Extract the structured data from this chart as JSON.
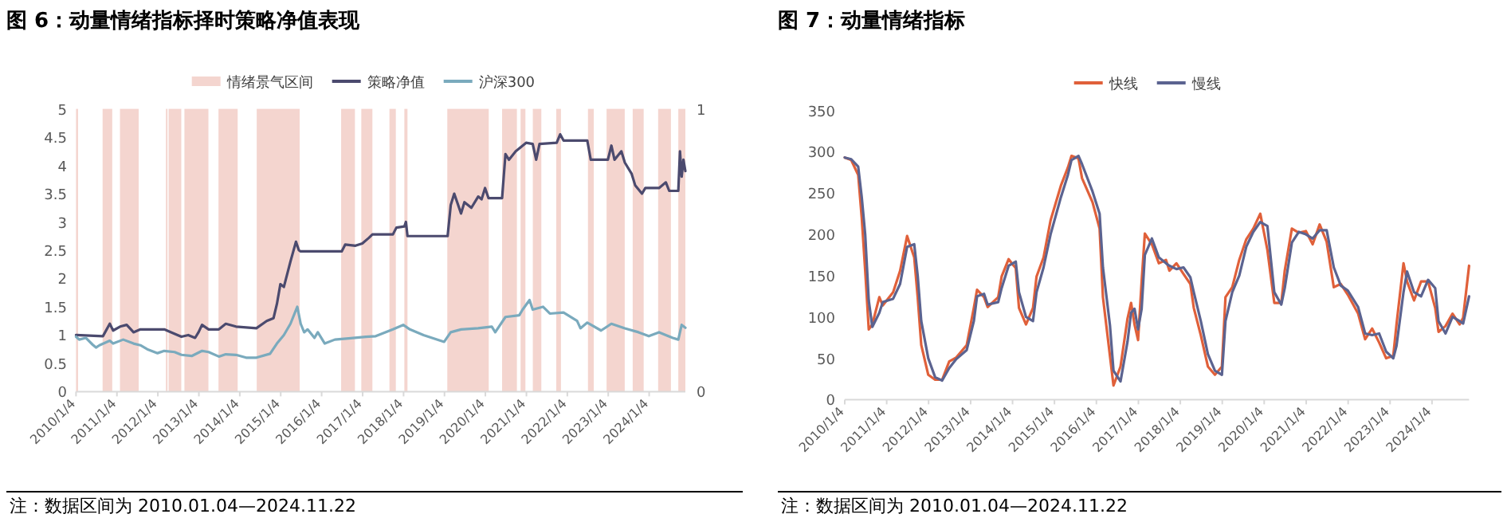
{
  "chart_data": [
    {
      "type": "line",
      "title": "图 6：动量情绪指标择时策略净值表现",
      "legend": "top",
      "annotations": [
        "注：数据区间为 2010.01.04—2024.11.22"
      ],
      "xlim": [
        "2010-01-04",
        "2024-11-22"
      ],
      "xticks": [
        {
          "value": "2010-01-04",
          "label": "2010/1/4"
        },
        {
          "value": "2011-01-04",
          "label": "2011/1/4"
        },
        {
          "value": "2012-01-04",
          "label": "2012/1/4"
        },
        {
          "value": "2013-01-04",
          "label": "2013/1/4"
        },
        {
          "value": "2014-01-04",
          "label": "2014/1/4"
        },
        {
          "value": "2015-01-04",
          "label": "2015/1/4"
        },
        {
          "value": "2016-01-04",
          "label": "2016/1/4"
        },
        {
          "value": "2017-01-04",
          "label": "2017/1/4"
        },
        {
          "value": "2018-01-04",
          "label": "2018/1/4"
        },
        {
          "value": "2019-01-04",
          "label": "2019/1/4"
        },
        {
          "value": "2020-01-04",
          "label": "2020/1/4"
        },
        {
          "value": "2021-01-04",
          "label": "2021/1/4"
        },
        {
          "value": "2022-01-04",
          "label": "2022/1/4"
        },
        {
          "value": "2023-01-04",
          "label": "2023/1/4"
        },
        {
          "value": "2024-01-04",
          "label": "2024/1/4"
        }
      ],
      "ylim": [
        0,
        5
      ],
      "yticks": [
        0,
        0.5,
        1,
        1.5,
        2,
        2.5,
        3,
        3.5,
        4,
        4.5,
        5
      ],
      "y2lim": [
        0,
        1
      ],
      "y2ticks": [
        0,
        1
      ],
      "bands": [
        {
          "axis": "x",
          "from": "2010-01-04",
          "to": "2010-01-22",
          "color": "#f4d5cf",
          "label": "情绪景气区间"
        },
        {
          "axis": "x",
          "from": "2010-08-29",
          "to": "2010-11-23",
          "color": "#f4d5cf"
        },
        {
          "axis": "x",
          "from": "2011-01-31",
          "to": "2011-07-17",
          "color": "#f4d5cf"
        },
        {
          "axis": "x",
          "from": "2012-03-16",
          "to": "2012-03-30",
          "color": "#f4d5cf"
        },
        {
          "axis": "x",
          "from": "2012-04-09",
          "to": "2012-07-31",
          "color": "#f4d5cf"
        },
        {
          "axis": "x",
          "from": "2012-08-28",
          "to": "2013-03-30",
          "color": "#f4d5cf"
        },
        {
          "axis": "x",
          "from": "2013-06-28",
          "to": "2013-12-16",
          "color": "#f4d5cf"
        },
        {
          "axis": "x",
          "from": "2014-06-04",
          "to": "2015-06-22",
          "color": "#f4d5cf"
        },
        {
          "axis": "x",
          "from": "2016-06-26",
          "to": "2016-10-27",
          "color": "#f4d5cf"
        },
        {
          "axis": "x",
          "from": "2016-12-23",
          "to": "2017-04-01",
          "color": "#f4d5cf"
        },
        {
          "axis": "x",
          "from": "2017-08-31",
          "to": "2017-10-27",
          "color": "#f4d5cf"
        },
        {
          "axis": "x",
          "from": "2018-01-11",
          "to": "2018-02-08",
          "color": "#f4d5cf"
        },
        {
          "axis": "x",
          "from": "2019-01-29",
          "to": "2020-02-03",
          "color": "#f4d5cf"
        },
        {
          "axis": "x",
          "from": "2020-06-01",
          "to": "2020-10-11",
          "color": "#f4d5cf"
        },
        {
          "axis": "x",
          "from": "2020-11-13",
          "to": "2020-12-26",
          "color": "#f4d5cf"
        },
        {
          "axis": "x",
          "from": "2021-03-02",
          "to": "2021-05-17",
          "color": "#f4d5cf"
        },
        {
          "axis": "x",
          "from": "2021-09-27",
          "to": "2021-11-08",
          "color": "#f4d5cf"
        },
        {
          "axis": "x",
          "from": "2022-07-07",
          "to": "2022-08-28",
          "color": "#f4d5cf"
        },
        {
          "axis": "x",
          "from": "2022-12-20",
          "to": "2023-05-31",
          "color": "#f4d5cf"
        },
        {
          "axis": "x",
          "from": "2023-08-10",
          "to": "2023-11-16",
          "color": "#f4d5cf"
        },
        {
          "axis": "x",
          "from": "2024-03-24",
          "to": "2024-07-16",
          "color": "#f4d5cf"
        },
        {
          "axis": "x",
          "from": "2024-09-20",
          "to": "2024-11-22",
          "color": "#f4d5cf"
        }
      ],
      "series": [
        {
          "name": "策略净值",
          "color": "#4b4a6e",
          "x": [
            "2010-01-04",
            "2010-09",
            "2010-11",
            "2010-12",
            "2011-02",
            "2011-04",
            "2011-06",
            "2011-08",
            "2012-03",
            "2012-05",
            "2012-08",
            "2012-10",
            "2012-12",
            "2013-01",
            "2013-02",
            "2013-04",
            "2013-07",
            "2013-09",
            "2013-12",
            "2014-06",
            "2014-09",
            "2014-11",
            "2014-12",
            "2015-01",
            "2015-02",
            "2015-04",
            "2015-05-20",
            "2015-06-15",
            "2015-06-30",
            "2016-07",
            "2016-08",
            "2016-11",
            "2017-01",
            "2017-03",
            "2017-04",
            "2017-10",
            "2017-11",
            "2018-01-11",
            "2018-01-25",
            "2018-02-08",
            "2019-02",
            "2019-03",
            "2019-04",
            "2019-06",
            "2019-07",
            "2019-09",
            "2019-11",
            "2019-12",
            "2020-01",
            "2020-02",
            "2020-06",
            "2020-07",
            "2020-08",
            "2020-10",
            "2020-11",
            "2021-01",
            "2021-03",
            "2021-04",
            "2021-05",
            "2021-10",
            "2021-11",
            "2021-12",
            "2022-07",
            "2022-08",
            "2023-01",
            "2023-02",
            "2023-03",
            "2023-05",
            "2023-06",
            "2023-08",
            "2023-09",
            "2023-11",
            "2023-12",
            "2024-04",
            "2024-06",
            "2024-07",
            "2024-09-20",
            "2024-10-05",
            "2024-10-20",
            "2024-11-05",
            "2024-11-22"
          ],
          "values": [
            1.0,
            0.98,
            1.2,
            1.08,
            1.15,
            1.18,
            1.05,
            1.1,
            1.1,
            1.05,
            0.97,
            1.0,
            0.95,
            1.05,
            1.18,
            1.1,
            1.1,
            1.2,
            1.15,
            1.12,
            1.25,
            1.3,
            1.55,
            1.9,
            1.85,
            2.3,
            2.65,
            2.5,
            2.48,
            2.48,
            2.6,
            2.58,
            2.62,
            2.72,
            2.78,
            2.78,
            2.9,
            2.92,
            3.0,
            2.75,
            2.75,
            3.3,
            3.5,
            3.15,
            3.35,
            3.25,
            3.45,
            3.4,
            3.6,
            3.42,
            3.42,
            4.2,
            4.1,
            4.25,
            4.3,
            4.4,
            4.38,
            4.1,
            4.38,
            4.4,
            4.55,
            4.44,
            4.44,
            4.1,
            4.1,
            4.35,
            4.1,
            4.25,
            4.05,
            3.85,
            3.65,
            3.5,
            3.6,
            3.6,
            3.7,
            3.55,
            3.55,
            4.25,
            3.8,
            4.1,
            3.9
          ]
        },
        {
          "name": "沪深300",
          "color": "#7aaabd",
          "x": [
            "2010-01-04",
            "2010-02",
            "2010-04",
            "2010-06",
            "2010-07",
            "2010-08",
            "2010-11",
            "2010-12",
            "2011-03",
            "2011-06",
            "2011-08",
            "2011-10",
            "2012-01",
            "2012-03",
            "2012-06",
            "2012-08",
            "2012-11",
            "2013-02",
            "2013-04",
            "2013-07",
            "2013-09",
            "2013-12",
            "2014-03",
            "2014-06",
            "2014-10",
            "2014-12",
            "2015-02",
            "2015-04",
            "2015-06",
            "2015-07",
            "2015-08",
            "2015-09",
            "2015-11",
            "2015-12",
            "2016-02",
            "2016-05",
            "2016-09",
            "2017-02",
            "2017-05",
            "2017-10",
            "2018-01",
            "2018-03",
            "2018-07",
            "2019-01",
            "2019-03",
            "2019-06",
            "2019-11",
            "2020-03",
            "2020-04",
            "2020-07",
            "2020-11",
            "2020-12",
            "2021-02",
            "2021-03",
            "2021-06",
            "2021-08",
            "2021-12",
            "2022-04",
            "2022-05",
            "2022-07",
            "2022-11",
            "2023-02",
            "2023-06",
            "2023-10",
            "2024-01",
            "2024-04",
            "2024-08",
            "2024-09-20",
            "2024-10-20",
            "2024-11-22"
          ],
          "values": [
            0.97,
            0.92,
            0.95,
            0.83,
            0.78,
            0.82,
            0.9,
            0.85,
            0.92,
            0.85,
            0.82,
            0.75,
            0.68,
            0.72,
            0.7,
            0.65,
            0.63,
            0.72,
            0.7,
            0.62,
            0.66,
            0.65,
            0.6,
            0.6,
            0.67,
            0.85,
            1.0,
            1.2,
            1.5,
            1.2,
            1.05,
            1.1,
            0.95,
            1.05,
            0.85,
            0.92,
            0.94,
            0.97,
            0.98,
            1.1,
            1.18,
            1.1,
            1.0,
            0.88,
            1.05,
            1.1,
            1.12,
            1.15,
            1.05,
            1.32,
            1.35,
            1.45,
            1.62,
            1.45,
            1.5,
            1.38,
            1.4,
            1.25,
            1.12,
            1.22,
            1.08,
            1.2,
            1.12,
            1.05,
            0.98,
            1.05,
            0.95,
            0.92,
            1.18,
            1.13
          ]
        }
      ]
    },
    {
      "type": "line",
      "title": "图 7：动量情绪指标",
      "legend": "top",
      "annotations": [
        "注：数据区间为 2010.01.04—2024.11.22"
      ],
      "xlim": [
        "2010-01-04",
        "2024-11-22"
      ],
      "xticks": [
        {
          "value": "2010-01-04",
          "label": "2010/1/4"
        },
        {
          "value": "2011-01-04",
          "label": "2011/1/4"
        },
        {
          "value": "2012-01-04",
          "label": "2012/1/4"
        },
        {
          "value": "2013-01-04",
          "label": "2013/1/4"
        },
        {
          "value": "2014-01-04",
          "label": "2014/1/4"
        },
        {
          "value": "2015-01-04",
          "label": "2015/1/4"
        },
        {
          "value": "2016-01-04",
          "label": "2016/1/4"
        },
        {
          "value": "2017-01-04",
          "label": "2017/1/4"
        },
        {
          "value": "2018-01-04",
          "label": "2018/1/4"
        },
        {
          "value": "2019-01-04",
          "label": "2019/1/4"
        },
        {
          "value": "2020-01-04",
          "label": "2020/1/4"
        },
        {
          "value": "2021-01-04",
          "label": "2021/1/4"
        },
        {
          "value": "2022-01-04",
          "label": "2022/1/4"
        },
        {
          "value": "2023-01-04",
          "label": "2023/1/4"
        },
        {
          "value": "2024-01-04",
          "label": "2024/1/4"
        }
      ],
      "ylim": [
        0,
        350
      ],
      "yticks": [
        0,
        50,
        100,
        150,
        200,
        250,
        300,
        350
      ],
      "x": [
        "2010-01-04",
        "2010-03",
        "2010-05",
        "2010-06",
        "2010-07",
        "2010-08",
        "2010-09",
        "2010-11",
        "2010-12",
        "2011-03",
        "2011-05",
        "2011-07",
        "2011-09",
        "2011-10",
        "2011-11",
        "2012-01",
        "2012-03",
        "2012-05",
        "2012-07",
        "2012-09",
        "2012-12",
        "2013-02",
        "2013-03",
        "2013-05",
        "2013-06",
        "2013-09",
        "2013-10",
        "2013-12",
        "2014-02",
        "2014-03",
        "2014-05",
        "2014-07",
        "2014-08",
        "2014-10",
        "2014-12",
        "2015-03",
        "2015-05",
        "2015-06",
        "2015-08",
        "2015-09",
        "2015-12",
        "2016-02",
        "2016-03",
        "2016-05",
        "2016-06",
        "2016-08",
        "2016-10",
        "2016-11",
        "2016-12",
        "2017-01",
        "2017-02",
        "2017-03",
        "2017-05",
        "2017-07",
        "2017-09",
        "2017-10",
        "2017-12",
        "2018-02",
        "2018-04",
        "2018-05",
        "2018-07",
        "2018-09",
        "2018-11",
        "2019-01",
        "2019-02",
        "2019-04",
        "2019-06",
        "2019-08",
        "2019-10",
        "2019-12",
        "2020-02",
        "2020-04",
        "2020-06",
        "2020-07",
        "2020-09",
        "2020-11",
        "2021-01",
        "2021-03",
        "2021-05",
        "2021-07",
        "2021-09",
        "2021-11",
        "2022-01",
        "2022-04",
        "2022-06",
        "2022-08",
        "2022-10",
        "2022-12",
        "2023-02",
        "2023-03",
        "2023-05",
        "2023-06",
        "2023-08",
        "2023-10",
        "2023-12",
        "2024-02",
        "2024-03",
        "2024-05",
        "2024-07",
        "2024-09",
        "2024-10",
        "2024-11-22"
      ],
      "series": [
        {
          "name": "快线",
          "color": "#e0603a",
          "values": [
            293,
            290,
            272,
            220,
            156,
            85,
            91,
            124,
            114,
            130,
            156,
            198,
            172,
            124,
            66,
            30,
            24,
            24,
            46,
            51,
            66,
            111,
            133,
            124,
            112,
            124,
            149,
            170,
            159,
            111,
            91,
            111,
            149,
            172,
            217,
            259,
            281,
            295,
            292,
            268,
            239,
            207,
            124,
            53,
            17,
            40,
            98,
            117,
            91,
            72,
            143,
            201,
            188,
            165,
            169,
            156,
            165,
            152,
            140,
            111,
            78,
            40,
            30,
            40,
            124,
            136,
            169,
            194,
            207,
            225,
            181,
            117,
            117,
            156,
            207,
            202,
            204,
            188,
            212,
            191,
            136,
            140,
            127,
            104,
            73,
            86,
            69,
            50,
            53,
            91,
            165,
            143,
            120,
            143,
            143,
            111,
            82,
            89,
            104,
            91,
            99,
            162
          ]
        },
        {
          "name": "慢线",
          "color": "#5b6390",
          "values": [
            293,
            291,
            282,
            245,
            200,
            120,
            88,
            105,
            118,
            122,
            140,
            185,
            188,
            150,
            95,
            50,
            27,
            23,
            38,
            49,
            60,
            95,
            125,
            128,
            115,
            118,
            135,
            162,
            167,
            130,
            100,
            95,
            130,
            160,
            200,
            245,
            272,
            290,
            295,
            285,
            252,
            225,
            160,
            90,
            35,
            22,
            70,
            105,
            110,
            85,
            110,
            175,
            195,
            172,
            165,
            162,
            158,
            160,
            148,
            130,
            95,
            55,
            35,
            30,
            95,
            130,
            150,
            185,
            203,
            215,
            210,
            130,
            115,
            135,
            190,
            203,
            200,
            195,
            205,
            205,
            160,
            138,
            132,
            112,
            80,
            78,
            80,
            58,
            50,
            65,
            130,
            155,
            130,
            125,
            145,
            135,
            95,
            80,
            100,
            95,
            92,
            125
          ]
        }
      ]
    }
  ]
}
